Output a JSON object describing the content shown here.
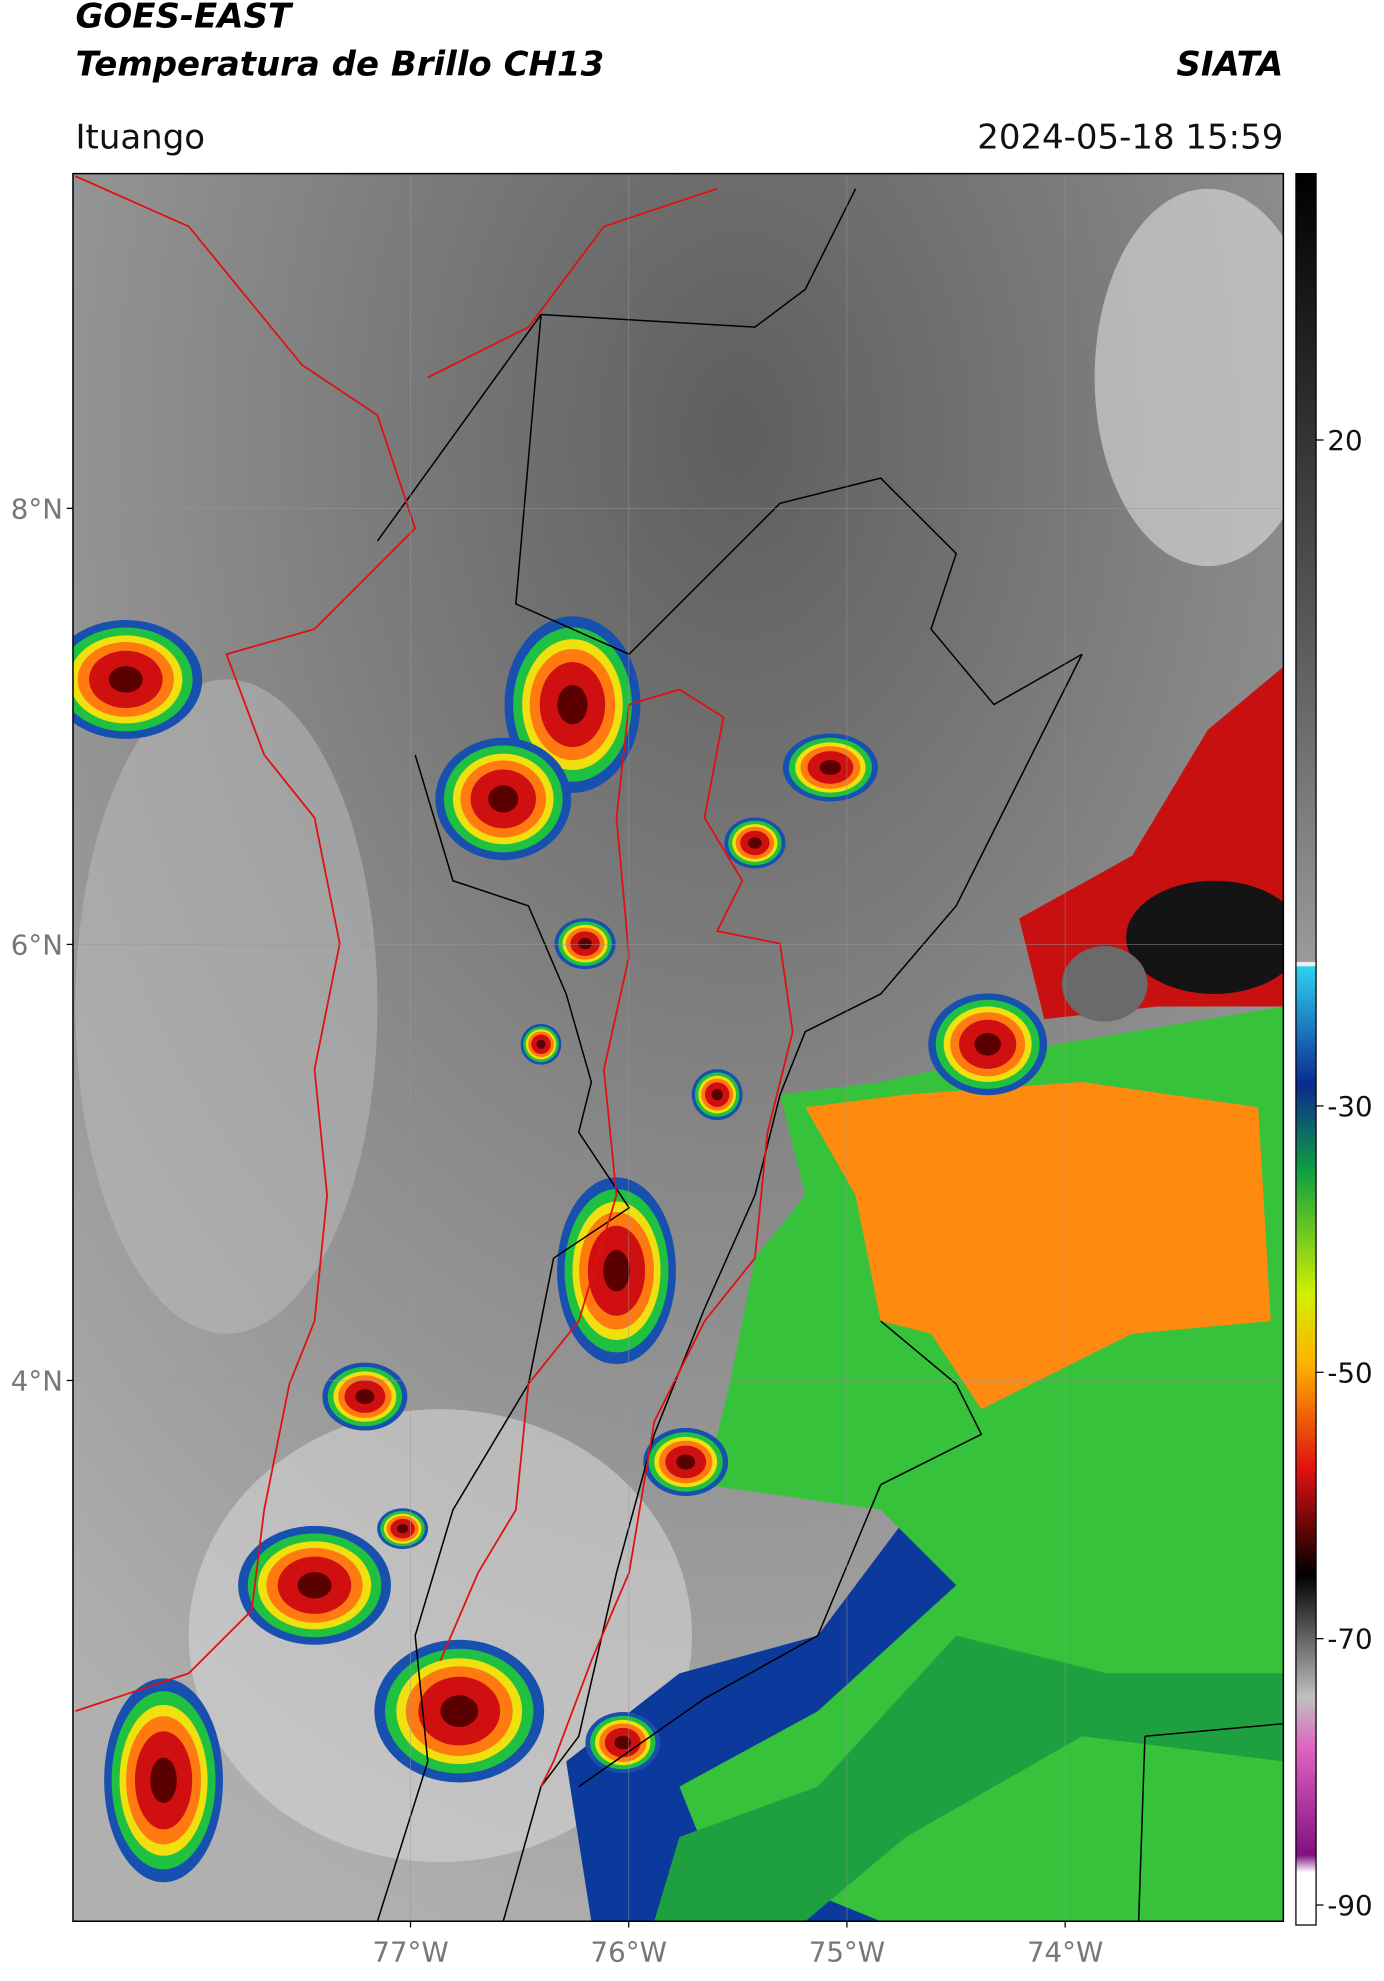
{
  "header": {
    "title": "GOES-EAST",
    "subtitle": "Temperatura de Brillo CH13",
    "source": "SIATA",
    "location": "Ituango",
    "datetime": "2024-05-18 15:59"
  },
  "map": {
    "lat_range": [
      1.52,
      9.535
    ],
    "lon_range": [
      -78.547,
      -73.0
    ],
    "lat_ticks": [
      {
        "value": 8,
        "label": "8°N"
      },
      {
        "value": 6,
        "label": "6°N"
      },
      {
        "value": 4,
        "label": "4°N"
      }
    ],
    "lon_ticks": [
      {
        "value": -77,
        "label": "77°W"
      },
      {
        "value": -76,
        "label": "76°W"
      },
      {
        "value": -75,
        "label": "75°W"
      },
      {
        "value": -74,
        "label": "74°W"
      }
    ]
  },
  "colorbar": {
    "range": [
      -91.5,
      40
    ],
    "ticks": [
      20,
      -30,
      -50,
      -70,
      -90
    ]
  }
}
